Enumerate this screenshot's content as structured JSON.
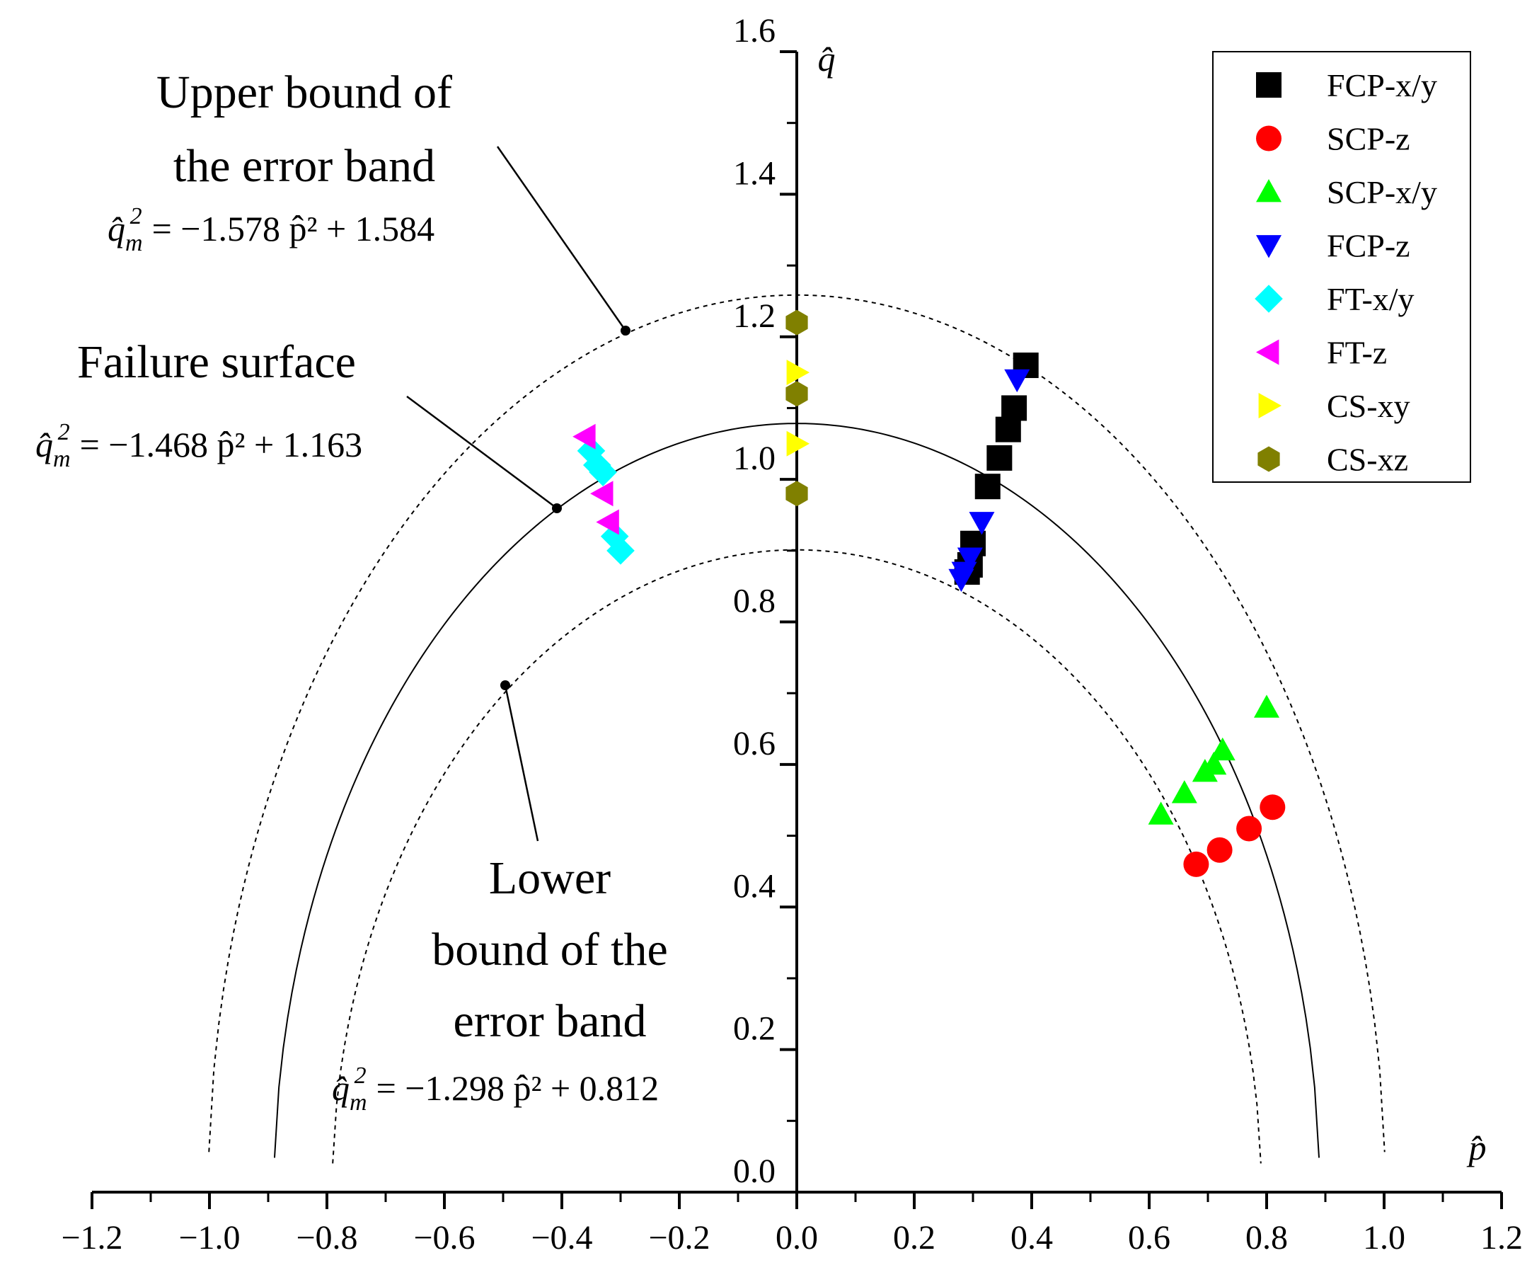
{
  "chart_data": {
    "type": "scatter",
    "title": "",
    "xlabel": "p̂",
    "ylabel": "q̂",
    "xlim": [
      -1.2,
      1.2
    ],
    "ylim": [
      0.0,
      1.6
    ],
    "x_ticks": [
      "−1.2",
      "−1.0",
      "−0.8",
      "−0.6",
      "−0.4",
      "−0.2",
      "0.0",
      "0.2",
      "0.4",
      "0.6",
      "0.8",
      "1.0",
      "1.2"
    ],
    "y_ticks": [
      "0.0",
      "0.2",
      "0.4",
      "0.6",
      "0.8",
      "1.0",
      "1.2",
      "1.4",
      "1.6"
    ],
    "grid": false,
    "legend_position": "top-right",
    "curves": [
      {
        "name": "Upper bound of the error band",
        "a": -1.578,
        "b": 1.584,
        "style": "dashed"
      },
      {
        "name": "Failure surface",
        "a": -1.468,
        "b": 1.163,
        "style": "solid"
      },
      {
        "name": "Lower bound of the error band",
        "a": -1.298,
        "b": 0.812,
        "style": "dashed"
      }
    ],
    "annotations": [
      {
        "lines": [
          "Upper bound of",
          "the error band"
        ],
        "equation": {
          "lhs": "q̂",
          "sub": "m",
          "sup": "2",
          "rhs": "= −1.578 p̂² + 1.584"
        }
      },
      {
        "lines": [
          "Failure surface"
        ],
        "equation": {
          "lhs": "q̂",
          "sub": "m",
          "sup": "2",
          "rhs": "= −1.468 p̂² + 1.163"
        }
      },
      {
        "lines": [
          "Lower",
          "bound of the",
          "error band"
        ],
        "equation": {
          "lhs": "q̂",
          "sub": "m",
          "sup": "2",
          "rhs": "= −1.298 p̂² + 0.812"
        }
      }
    ],
    "series": [
      {
        "name": "FCP-x/y",
        "marker": "square",
        "color": "#000000",
        "points": [
          [
            0.39,
            1.16
          ],
          [
            0.37,
            1.1
          ],
          [
            0.36,
            1.07
          ],
          [
            0.345,
            1.03
          ],
          [
            0.325,
            0.99
          ],
          [
            0.3,
            0.91
          ],
          [
            0.295,
            0.88
          ],
          [
            0.29,
            0.87
          ]
        ]
      },
      {
        "name": "SCP-z",
        "marker": "circle",
        "color": "#ff0000",
        "points": [
          [
            0.68,
            0.46
          ],
          [
            0.72,
            0.48
          ],
          [
            0.77,
            0.51
          ],
          [
            0.81,
            0.54
          ]
        ]
      },
      {
        "name": "SCP-x/y",
        "marker": "triangle-up",
        "color": "#00ff00",
        "points": [
          [
            0.62,
            0.53
          ],
          [
            0.66,
            0.56
          ],
          [
            0.695,
            0.59
          ],
          [
            0.71,
            0.6
          ],
          [
            0.725,
            0.62
          ],
          [
            0.8,
            0.68
          ]
        ]
      },
      {
        "name": "FCP-z",
        "marker": "triangle-down",
        "color": "#0000ff",
        "points": [
          [
            0.375,
            1.14
          ],
          [
            0.315,
            0.94
          ],
          [
            0.295,
            0.89
          ],
          [
            0.285,
            0.87
          ],
          [
            0.28,
            0.86
          ]
        ]
      },
      {
        "name": "FT-x/y",
        "marker": "diamond",
        "color": "#00ffff",
        "points": [
          [
            -0.35,
            1.04
          ],
          [
            -0.34,
            1.02
          ],
          [
            -0.33,
            1.01
          ],
          [
            -0.31,
            0.92
          ],
          [
            -0.3,
            0.9
          ]
        ]
      },
      {
        "name": "FT-z",
        "marker": "triangle-left",
        "color": "#ff00ff",
        "points": [
          [
            -0.36,
            1.06
          ],
          [
            -0.33,
            0.98
          ],
          [
            -0.32,
            0.94
          ]
        ]
      },
      {
        "name": "CS-xy",
        "marker": "triangle-right",
        "color": "#ffff00",
        "points": [
          [
            0.0,
            1.15
          ],
          [
            0.0,
            1.05
          ]
        ]
      },
      {
        "name": "CS-xz",
        "marker": "hexagon",
        "color": "#808000",
        "points": [
          [
            0.0,
            1.22
          ],
          [
            0.0,
            1.12
          ],
          [
            0.0,
            0.98
          ]
        ]
      }
    ]
  }
}
